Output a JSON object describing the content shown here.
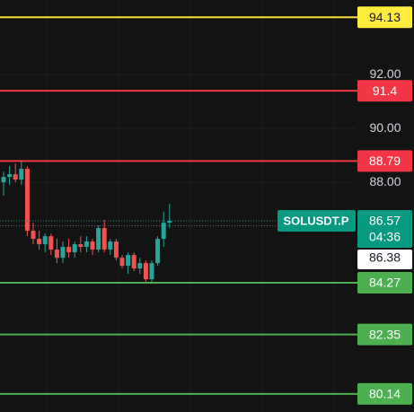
{
  "chart_data": {
    "type": "candlestick",
    "ylim": [
      79.47,
      94.77
    ],
    "yticks": [
      {
        "value": 92,
        "label": "92.00"
      },
      {
        "value": 90,
        "label": "90.00"
      },
      {
        "value": 88,
        "label": "88.00"
      }
    ],
    "up_color": "#26a69a",
    "down_color": "#ef5350",
    "candles": {
      "open": [
        88.0,
        88.2,
        88.3,
        88.1,
        88.5,
        86.2,
        85.9,
        85.7,
        86.0,
        85.5,
        85.2,
        85.6,
        85.4,
        85.7,
        85.6,
        85.8,
        85.5,
        86.3,
        85.5,
        85.8,
        85.2,
        84.9,
        85.3,
        84.8,
        85.0,
        84.4,
        85.0,
        85.9,
        86.5
      ],
      "high": [
        88.4,
        88.6,
        88.7,
        88.8,
        88.6,
        86.5,
        86.2,
        86.1,
        86.1,
        85.9,
        85.8,
        85.9,
        85.8,
        86.0,
        86.0,
        85.9,
        86.4,
        86.6,
        85.9,
        85.9,
        85.3,
        85.4,
        85.4,
        85.2,
        85.1,
        85.1,
        86.0,
        86.9,
        87.2
      ],
      "low": [
        87.5,
        87.9,
        88.0,
        87.9,
        86.0,
        85.7,
        85.5,
        85.4,
        85.3,
        85.0,
        85.0,
        85.2,
        85.2,
        85.4,
        85.4,
        85.3,
        85.4,
        85.4,
        85.3,
        85.1,
        84.8,
        84.6,
        84.7,
        84.6,
        84.3,
        84.3,
        84.9,
        85.6,
        86.3
      ],
      "close": [
        88.2,
        88.3,
        88.1,
        88.5,
        86.2,
        85.9,
        85.7,
        86.0,
        85.5,
        85.2,
        85.6,
        85.4,
        85.7,
        85.6,
        85.8,
        85.5,
        86.3,
        85.5,
        85.8,
        85.2,
        84.9,
        85.3,
        84.8,
        85.0,
        84.4,
        85.0,
        85.9,
        86.5,
        86.57
      ]
    },
    "levels": [
      {
        "value": 94.13,
        "color": "#f5e13c",
        "label_color": "#ffeb3b",
        "text_color": "#131722"
      },
      {
        "value": 91.4,
        "color": "#f23645",
        "label_color": "#f23645",
        "text_color": "#ffffff"
      },
      {
        "value": 88.79,
        "color": "#f23645",
        "label_color": "#f23645",
        "text_color": "#ffffff"
      },
      {
        "value": 84.27,
        "color": "#4caf50",
        "label_color": "#4caf50",
        "text_color": "#ffffff"
      },
      {
        "value": 82.35,
        "color": "#4caf50",
        "label_color": "#4caf50",
        "text_color": "#ffffff"
      },
      {
        "value": 80.14,
        "color": "#4caf50",
        "label_color": "#4caf50",
        "text_color": "#ffffff"
      }
    ],
    "last_price": {
      "value": 86.57,
      "symbol": "SOLUSDT.P",
      "countdown": "04:36",
      "color": "#089981"
    },
    "bid_price": {
      "value": 86.38,
      "color": "#ffffff"
    }
  }
}
